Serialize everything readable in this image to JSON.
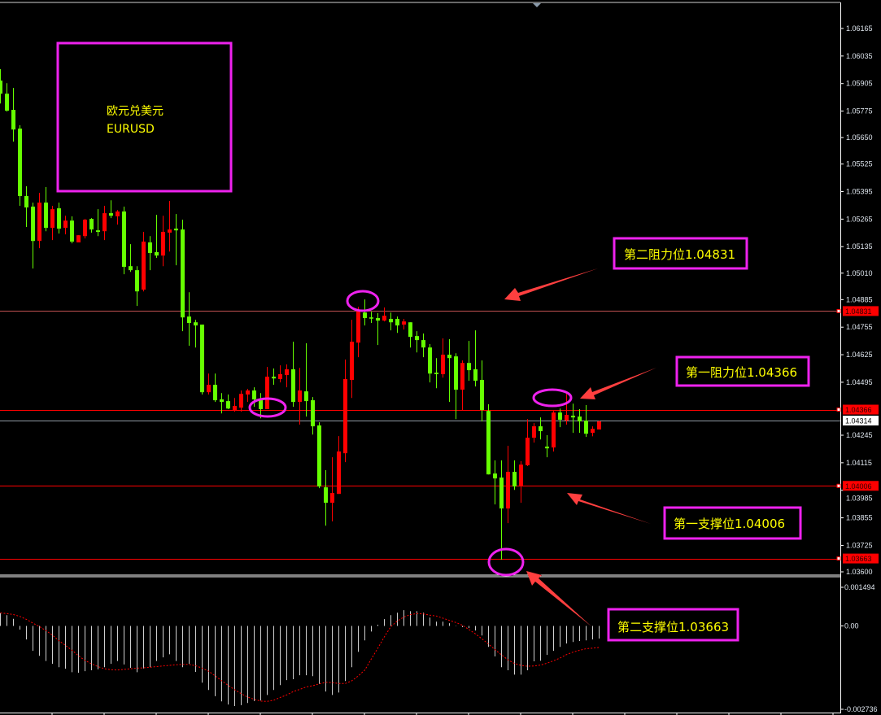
{
  "title_box": {
    "line1": "欧元兑美元",
    "line2": "EURUSD"
  },
  "colors": {
    "background": "#000000",
    "bear_candle": "#66ff00",
    "bull_candle": "#ff0000",
    "level_line": "#ff0000",
    "current_price_line": "#8f99a3",
    "annotation_border": "#ee22ee",
    "annotation_text": "#ffff00",
    "arrow": "#ff3f3f",
    "macd_histogram": "#cfcfcf",
    "macd_signal": "#ff0000"
  },
  "chart_data": [
    {
      "type": "candlestick",
      "symbol": "EURUSD",
      "ohlc_order": [
        "open",
        "high",
        "low",
        "close"
      ],
      "y_ticks": [
        "1.06165",
        "1.06035",
        "1.05905",
        "1.05775",
        "1.05650",
        "1.05525",
        "1.05395",
        "1.05265",
        "1.05135",
        "1.05010",
        "1.04885",
        "1.04755",
        "1.04625",
        "1.04495",
        "1.04245",
        "1.04115",
        "1.03985",
        "1.03855",
        "1.03725",
        "1.03600"
      ],
      "ylim": [
        1.036,
        1.0625
      ],
      "current_price": "1.04314",
      "levels": [
        {
          "price": "1.04831",
          "label": "第二阻力位1.04831"
        },
        {
          "price": "1.04366",
          "label": "第一阻力位1.04366"
        },
        {
          "price": "1.04006",
          "label": "第一支撑位1.04006"
        },
        {
          "price": "1.03663",
          "label": "第二支撑位1.03663"
        }
      ],
      "candles": [
        [
          1.05919,
          1.05973,
          1.05811,
          1.05857
        ],
        [
          1.05857,
          1.05907,
          1.05773,
          1.05777
        ],
        [
          1.05781,
          1.05884,
          1.05631,
          1.05688
        ],
        [
          1.05692,
          1.05708,
          1.05328,
          1.05374
        ],
        [
          1.05374,
          1.0542,
          1.05228,
          1.0532
        ],
        [
          1.05324,
          1.05343,
          1.05032,
          1.05162
        ],
        [
          1.05162,
          1.05389,
          1.05128,
          1.05343
        ],
        [
          1.05343,
          1.05416,
          1.05208,
          1.05224
        ],
        [
          1.05224,
          1.05328,
          1.05166,
          1.05312
        ],
        [
          1.05316,
          1.05343,
          1.05197,
          1.0522
        ],
        [
          1.05224,
          1.05281,
          1.05193,
          1.05258
        ],
        [
          1.05258,
          1.05278,
          1.05151,
          1.05159
        ],
        [
          1.05155,
          1.05189,
          1.05155,
          1.05189
        ],
        [
          1.05185,
          1.05266,
          1.05174,
          1.05262
        ],
        [
          1.05266,
          1.0527,
          1.05201,
          1.05216
        ],
        [
          1.05212,
          1.05312,
          1.05185,
          1.05205
        ],
        [
          1.05208,
          1.05328,
          1.05166,
          1.05293
        ],
        [
          1.05293,
          1.05354,
          1.0527,
          1.05281
        ],
        [
          1.05278,
          1.05308,
          1.05239,
          1.05301
        ],
        [
          1.05301,
          1.05324,
          1.05005,
          1.0504
        ],
        [
          1.05043,
          1.05147,
          1.05016,
          1.05024
        ],
        [
          1.05024,
          1.05043,
          1.04855,
          1.04924
        ],
        [
          1.04932,
          1.05205,
          1.04924,
          1.05159
        ],
        [
          1.05155,
          1.05185,
          1.05024,
          1.05105
        ],
        [
          1.05109,
          1.05285,
          1.05082,
          1.05093
        ],
        [
          1.05093,
          1.05281,
          1.05043,
          1.05205
        ],
        [
          1.05201,
          1.05351,
          1.05112,
          1.05216
        ],
        [
          1.0522,
          1.05289,
          1.05047,
          1.05212
        ],
        [
          1.05216,
          1.05262,
          1.04736,
          1.04801
        ],
        [
          1.04805,
          1.0492,
          1.04667,
          1.04775
        ],
        [
          1.04778,
          1.0479,
          1.04659,
          1.04763
        ],
        [
          1.04767,
          1.04767,
          1.04437,
          1.04448
        ],
        [
          1.04448,
          1.04536,
          1.04437,
          1.04483
        ],
        [
          1.04483,
          1.04536,
          1.04402,
          1.0441
        ],
        [
          1.04414,
          1.04444,
          1.04348,
          1.04402
        ],
        [
          1.04406,
          1.04437,
          1.04368,
          1.04371
        ],
        [
          1.0436,
          1.04421,
          1.04356,
          1.04383
        ],
        [
          1.04375,
          1.04456,
          1.04356,
          1.0444
        ],
        [
          1.04437,
          1.04464,
          1.04402,
          1.04456
        ],
        [
          1.04456,
          1.04471,
          1.04379,
          1.04414
        ],
        [
          1.0441,
          1.04444,
          1.04325,
          1.04368
        ],
        [
          1.04368,
          1.04567,
          1.04368,
          1.04521
        ],
        [
          1.04521,
          1.0456,
          1.04483,
          1.04513
        ],
        [
          1.0451,
          1.04575,
          1.04494,
          1.04533
        ],
        [
          1.04529,
          1.04579,
          1.04471,
          1.04556
        ],
        [
          1.04556,
          1.04686,
          1.04379,
          1.04402
        ],
        [
          1.04402,
          1.04563,
          1.04295,
          1.04456
        ],
        [
          1.04452,
          1.04679,
          1.04333,
          1.04406
        ],
        [
          1.0441,
          1.04425,
          1.04248,
          1.04287
        ],
        [
          1.04291,
          1.04306,
          1.03995,
          1.04003
        ],
        [
          1.03999,
          1.0408,
          1.03818,
          1.03926
        ],
        [
          1.03926,
          1.04141,
          1.03838,
          1.03972
        ],
        [
          1.03968,
          1.04241,
          1.03968,
          1.04168
        ],
        [
          1.0416,
          1.04602,
          1.04118,
          1.0451
        ],
        [
          1.04506,
          1.0479,
          1.04421,
          1.04686
        ],
        [
          1.04682,
          1.04851,
          1.04613,
          1.04832
        ],
        [
          1.04824,
          1.04886,
          1.04763,
          1.04798
        ],
        [
          1.04801,
          1.04828,
          1.04775,
          1.04798
        ],
        [
          1.04798,
          1.04821,
          1.04671,
          1.04786
        ],
        [
          1.04786,
          1.04848,
          1.04782,
          1.04809
        ],
        [
          1.04794,
          1.04824,
          1.0474,
          1.04778
        ],
        [
          1.04794,
          1.04805,
          1.04728,
          1.04763
        ],
        [
          1.04767,
          1.04794,
          1.04744,
          1.04782
        ],
        [
          1.04778,
          1.04778,
          1.04659,
          1.04709
        ],
        [
          1.04713,
          1.04736,
          1.04636,
          1.04694
        ],
        [
          1.04694,
          1.04725,
          1.04613,
          1.04659
        ],
        [
          1.04659,
          1.04675,
          1.04494,
          1.04536
        ],
        [
          1.0454,
          1.04609,
          1.04467,
          1.04533
        ],
        [
          1.04533,
          1.04702,
          1.04517,
          1.04625
        ],
        [
          1.04625,
          1.04698,
          1.04402,
          1.04609
        ],
        [
          1.04617,
          1.04632,
          1.04321,
          1.0446
        ],
        [
          1.0446,
          1.04598,
          1.04364,
          1.04586
        ],
        [
          1.04586,
          1.0469,
          1.04502,
          1.04552
        ],
        [
          1.04556,
          1.0474,
          1.04475,
          1.04502
        ],
        [
          1.04506,
          1.04598,
          1.0431,
          1.04364
        ],
        [
          1.0436,
          1.04391,
          1.0406,
          1.0406
        ],
        [
          1.04064,
          1.04126,
          1.03918,
          1.04041
        ],
        [
          1.04045,
          1.04126,
          1.03657,
          1.03899
        ],
        [
          1.03899,
          1.04195,
          1.0383,
          1.04072
        ],
        [
          1.04072,
          1.04126,
          1.03987,
          1.04003
        ],
        [
          1.04003,
          1.04122,
          1.03926,
          1.04106
        ],
        [
          1.04103,
          1.04321,
          1.04099,
          1.04233
        ],
        [
          1.04233,
          1.04302,
          1.0421,
          1.04287
        ],
        [
          1.04287,
          1.04329,
          1.04225,
          1.04264
        ],
        [
          1.04191,
          1.04245,
          1.04141,
          1.04183
        ],
        [
          1.04187,
          1.0436,
          1.04168,
          1.04352
        ],
        [
          1.04352,
          1.04371,
          1.04283,
          1.04318
        ],
        [
          1.04314,
          1.0444,
          1.04295,
          1.04341
        ],
        [
          1.04337,
          1.04394,
          1.04256,
          1.04329
        ],
        [
          1.04333,
          1.04368,
          1.04256,
          1.0431
        ],
        [
          1.04314,
          1.04387,
          1.04237,
          1.04252
        ],
        [
          1.04256,
          1.04287,
          1.0424,
          1.04275
        ],
        [
          1.04272,
          1.04314,
          1.04272,
          1.0431
        ]
      ]
    },
    {
      "type": "bar+line",
      "indicator": "MACD",
      "y_ticks": [
        "0.001494",
        "0.00",
        "-0.002736"
      ],
      "ylim": [
        -0.002736,
        0.001494
      ],
      "histogram": [
        0.00042,
        0.00035,
        0.00023,
        -0.00012,
        -0.00044,
        -0.00081,
        -0.00097,
        -0.00114,
        -0.00123,
        -0.00134,
        -0.00139,
        -0.0015,
        -0.00152,
        -0.00147,
        -0.00144,
        -0.00141,
        -0.00134,
        -0.00123,
        -0.00114,
        -0.00125,
        -0.00136,
        -0.0015,
        -0.00138,
        -0.00134,
        -0.00114,
        -0.00102,
        -0.00092,
        -0.00114,
        -0.00134,
        -0.00123,
        -0.00149,
        -0.00184,
        -0.00208,
        -0.00228,
        -0.00245,
        -0.00255,
        -0.0026,
        -0.00257,
        -0.0025,
        -0.00244,
        -0.00242,
        -0.00224,
        -0.00208,
        -0.00192,
        -0.00176,
        -0.00173,
        -0.0016,
        -0.0016,
        -0.00163,
        -0.00188,
        -0.00213,
        -0.00224,
        -0.00216,
        -0.00179,
        -0.00134,
        -0.00084,
        -0.00047,
        -0.00018,
        4e-05,
        0.00022,
        0.00035,
        0.00043,
        0.00051,
        0.00048,
        0.00048,
        0.00043,
        0.00027,
        0.00014,
        0.00014,
        9e-05,
        1e-05,
        -4e-05,
        -7e-05,
        -0.00015,
        -0.00031,
        -0.00068,
        -0.00099,
        -0.00134,
        -0.00144,
        -0.00158,
        -0.00158,
        -0.00144,
        -0.00115,
        -0.00113,
        -0.00094,
        -0.00081,
        -0.00068,
        -0.00057,
        -0.00052,
        -0.00049,
        -0.00047,
        -0.00044,
        -0.00041
      ],
      "signal": [
        0.00042,
        0.0004,
        0.00037,
        0.00031,
        0.00021,
        9e-05,
        -2e-05,
        -0.00015,
        -0.0003,
        -0.00048,
        -0.00063,
        -0.00079,
        -0.00097,
        -0.00112,
        -0.00123,
        -0.00132,
        -0.00139,
        -0.00142,
        -0.00143,
        -0.00141,
        -0.00139,
        -0.00137,
        -0.00136,
        -0.00134,
        -0.00132,
        -0.0013,
        -0.00128,
        -0.00126,
        -0.00125,
        -0.00125,
        -0.00129,
        -0.00137,
        -0.00147,
        -0.00162,
        -0.00178,
        -0.00193,
        -0.00207,
        -0.0022,
        -0.00231,
        -0.00238,
        -0.00244,
        -0.00245,
        -0.00241,
        -0.00232,
        -0.00224,
        -0.00213,
        -0.00206,
        -0.00198,
        -0.00194,
        -0.00188,
        -0.00183,
        -0.00184,
        -0.00187,
        -0.00187,
        -0.00178,
        -0.00162,
        -0.00143,
        -0.00107,
        -0.00072,
        -0.00035,
        -2e-05,
        0.00016,
        0.00029,
        0.00037,
        0.0004,
        0.00039,
        0.00035,
        0.00032,
        0.00025,
        0.00018,
        0.00011,
        2e-05,
        -0.00012,
        -0.00026,
        -0.00042,
        -0.00059,
        -0.00077,
        -0.00094,
        -0.0011,
        -0.00122,
        -0.00128,
        -0.00131,
        -0.0013,
        -0.00127,
        -0.00121,
        -0.00113,
        -0.00104,
        -0.00093,
        -0.00085,
        -0.00079,
        -0.00074,
        -0.00072,
        -0.0007
      ]
    }
  ]
}
